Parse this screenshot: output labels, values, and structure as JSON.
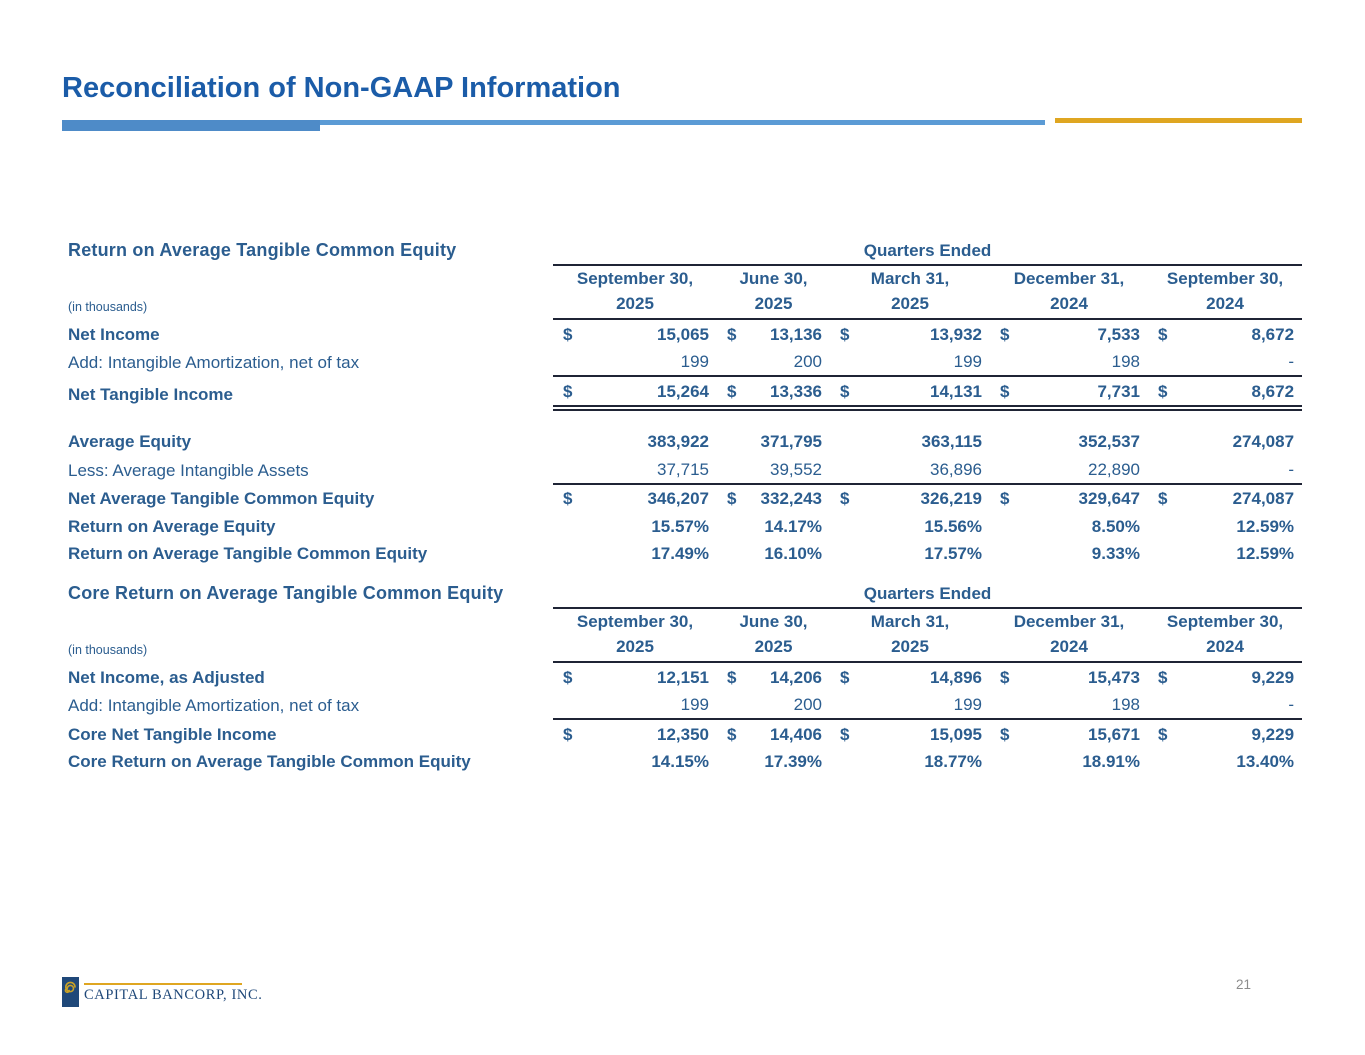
{
  "slide": {
    "title": "Reconciliation of Non-GAAP Information",
    "page_number": "21"
  },
  "footer": {
    "company": "CAPITAL BANCORP, INC.",
    "logo_icon": "gold-spiral-icon"
  },
  "colors": {
    "title_blue": "#1B5CA8",
    "table_text": "#2B5D8F",
    "rule_dark": "#1F2435",
    "accent_bar_thick": "#4E8BC8",
    "accent_bar_thin": "#5B9BD5",
    "accent_bar_gold": "#DFA621",
    "logo_navy": "#1F4879",
    "logo_gold": "#C9A227",
    "page_number_gray": "#8C8C8C"
  },
  "tables": [
    {
      "title": "Return on Average Tangible Common Equity",
      "note": "(in thousands)",
      "quarters_label": "Quarters Ended",
      "currency_symbol": "$",
      "columns": [
        {
          "line1": "September 30,",
          "line2": "2025"
        },
        {
          "line1": "June 30,",
          "line2": "2025"
        },
        {
          "line1": "March 31,",
          "line2": "2025"
        },
        {
          "line1": "December 31,",
          "line2": "2024"
        },
        {
          "line1": "September 30,",
          "line2": "2024"
        }
      ],
      "sections": [
        {
          "rows": [
            {
              "label": "Net Income",
              "bold": true,
              "dollar": true,
              "values": [
                "15,065",
                "13,136",
                "13,932",
                "7,533",
                "8,672"
              ]
            },
            {
              "label": "Add: Intangible Amortization, net of tax",
              "bold": false,
              "dollar": false,
              "rule_below": true,
              "values": [
                "199",
                "200",
                "199",
                "198",
                "-"
              ]
            },
            {
              "label": "Net Tangible Income",
              "bold": true,
              "dollar": true,
              "double_below": true,
              "values": [
                "15,264",
                "13,336",
                "14,131",
                "7,731",
                "8,672"
              ]
            }
          ]
        },
        {
          "rows": [
            {
              "label": "Average Equity",
              "bold": true,
              "dollar": false,
              "values": [
                "383,922",
                "371,795",
                "363,115",
                "352,537",
                "274,087"
              ]
            },
            {
              "label": "Less: Average Intangible Assets",
              "bold": false,
              "dollar": false,
              "rule_below": true,
              "values": [
                "37,715",
                "39,552",
                "36,896",
                "22,890",
                "-"
              ]
            },
            {
              "label": "Net Average Tangible Common Equity",
              "bold": true,
              "dollar": true,
              "values": [
                "346,207",
                "332,243",
                "326,219",
                "329,647",
                "274,087"
              ]
            },
            {
              "label": "Return on Average Equity",
              "bold": true,
              "dollar": false,
              "values": [
                "15.57%",
                "14.17%",
                "15.56%",
                "8.50%",
                "12.59%"
              ]
            },
            {
              "label": "Return on Average Tangible Common Equity",
              "bold": true,
              "dollar": false,
              "values": [
                "17.49%",
                "16.10%",
                "17.57%",
                "9.33%",
                "12.59%"
              ]
            }
          ]
        }
      ]
    },
    {
      "title": "Core Return on Average Tangible Common Equity",
      "note": "(in thousands)",
      "quarters_label": "Quarters Ended",
      "currency_symbol": "$",
      "columns": [
        {
          "line1": "September 30,",
          "line2": "2025"
        },
        {
          "line1": "June 30,",
          "line2": "2025"
        },
        {
          "line1": "March 31,",
          "line2": "2025"
        },
        {
          "line1": "December 31,",
          "line2": "2024"
        },
        {
          "line1": "September 30,",
          "line2": "2024"
        }
      ],
      "sections": [
        {
          "rows": [
            {
              "label": "Net Income, as Adjusted",
              "bold": true,
              "dollar": true,
              "values": [
                "12,151",
                "14,206",
                "14,896",
                "15,473",
                "9,229"
              ]
            },
            {
              "label": "Add: Intangible Amortization, net of tax",
              "bold": false,
              "dollar": false,
              "rule_below": true,
              "values": [
                "199",
                "200",
                "199",
                "198",
                "-"
              ]
            },
            {
              "label": "Core Net Tangible Income",
              "bold": true,
              "dollar": true,
              "values": [
                "12,350",
                "14,406",
                "15,095",
                "15,671",
                "9,229"
              ]
            },
            {
              "label": "Core Return on Average Tangible Common Equity",
              "bold": true,
              "dollar": false,
              "values": [
                "14.15%",
                "17.39%",
                "18.77%",
                "18.91%",
                "13.40%"
              ]
            }
          ]
        }
      ]
    }
  ]
}
